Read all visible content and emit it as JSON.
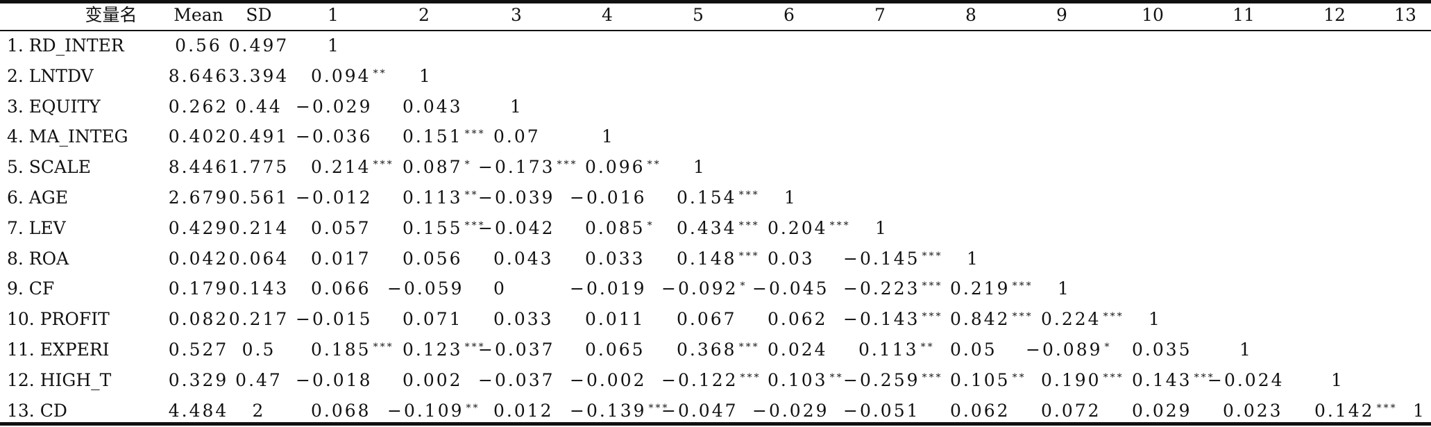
{
  "header": [
    "变量名",
    "Mean",
    "SD",
    "1",
    "2",
    "3",
    "4",
    "5",
    "6",
    "7",
    "8",
    "9",
    "10",
    "11",
    "12",
    "13"
  ],
  "rows": [
    {
      "name": "1. RD_INTER",
      "mean": "0.56",
      "sd": "0.497",
      "cells": [
        {
          "v": "1",
          "s": ""
        }
      ]
    },
    {
      "name": "2. LNTDV",
      "mean": "8.646",
      "sd": "3.394",
      "cells": [
        {
          "v": "0.094",
          "s": "**"
        },
        {
          "v": "1",
          "s": ""
        }
      ]
    },
    {
      "name": "3. EQUITY",
      "mean": "0.262",
      "sd": "0.44",
      "cells": [
        {
          "v": "−0.029",
          "s": ""
        },
        {
          "v": "0.043",
          "s": ""
        },
        {
          "v": "1",
          "s": ""
        }
      ]
    },
    {
      "name": "4. MA_INTEG",
      "mean": "0.402",
      "sd": "0.491",
      "cells": [
        {
          "v": "−0.036",
          "s": ""
        },
        {
          "v": "0.151",
          "s": "***"
        },
        {
          "v": "0.07",
          "s": ""
        },
        {
          "v": "1",
          "s": ""
        }
      ]
    },
    {
      "name": "5. SCALE",
      "mean": "8.446",
      "sd": "1.775",
      "cells": [
        {
          "v": "0.214",
          "s": "***"
        },
        {
          "v": "0.087",
          "s": "*"
        },
        {
          "v": "−0.173",
          "s": "***"
        },
        {
          "v": "0.096",
          "s": "**"
        },
        {
          "v": "1",
          "s": ""
        }
      ]
    },
    {
      "name": "6. AGE",
      "mean": "2.679",
      "sd": "0.561",
      "cells": [
        {
          "v": "−0.012",
          "s": ""
        },
        {
          "v": "0.113",
          "s": "**"
        },
        {
          "v": "−0.039",
          "s": ""
        },
        {
          "v": "−0.016",
          "s": ""
        },
        {
          "v": "0.154",
          "s": "***"
        },
        {
          "v": "1",
          "s": ""
        }
      ]
    },
    {
      "name": "7. LEV",
      "mean": "0.429",
      "sd": "0.214",
      "cells": [
        {
          "v": "0.057",
          "s": ""
        },
        {
          "v": "0.155",
          "s": "***"
        },
        {
          "v": "−0.042",
          "s": ""
        },
        {
          "v": "0.085",
          "s": "*"
        },
        {
          "v": "0.434",
          "s": "***"
        },
        {
          "v": "0.204",
          "s": "***"
        },
        {
          "v": "1",
          "s": ""
        }
      ]
    },
    {
      "name": "8. ROA",
      "mean": "0.042",
      "sd": "0.064",
      "cells": [
        {
          "v": "0.017",
          "s": ""
        },
        {
          "v": "0.056",
          "s": ""
        },
        {
          "v": "0.043",
          "s": ""
        },
        {
          "v": "0.033",
          "s": ""
        },
        {
          "v": "0.148",
          "s": "***"
        },
        {
          "v": "0.03",
          "s": ""
        },
        {
          "v": "−0.145",
          "s": "***"
        },
        {
          "v": "1",
          "s": ""
        }
      ]
    },
    {
      "name": "9. CF",
      "mean": "0.179",
      "sd": "0.143",
      "cells": [
        {
          "v": "0.066",
          "s": ""
        },
        {
          "v": "−0.059",
          "s": ""
        },
        {
          "v": "0",
          "s": ""
        },
        {
          "v": "−0.019",
          "s": ""
        },
        {
          "v": "−0.092",
          "s": "*"
        },
        {
          "v": "−0.045",
          "s": ""
        },
        {
          "v": "−0.223",
          "s": "***"
        },
        {
          "v": "0.219",
          "s": "***"
        },
        {
          "v": "1",
          "s": ""
        }
      ]
    },
    {
      "name": "10. PROFIT",
      "mean": "0.082",
      "sd": "0.217",
      "cells": [
        {
          "v": "−0.015",
          "s": ""
        },
        {
          "v": "0.071",
          "s": ""
        },
        {
          "v": "0.033",
          "s": ""
        },
        {
          "v": "0.011",
          "s": ""
        },
        {
          "v": "0.067",
          "s": ""
        },
        {
          "v": "0.062",
          "s": ""
        },
        {
          "v": "−0.143",
          "s": "***"
        },
        {
          "v": "0.842",
          "s": "***"
        },
        {
          "v": "0.224",
          "s": "***"
        },
        {
          "v": "1",
          "s": ""
        }
      ]
    },
    {
      "name": "11. EXPERI",
      "mean": "0.527",
      "sd": "0.5",
      "cells": [
        {
          "v": "0.185",
          "s": "***"
        },
        {
          "v": "0.123",
          "s": "***"
        },
        {
          "v": "−0.037",
          "s": ""
        },
        {
          "v": "0.065",
          "s": ""
        },
        {
          "v": "0.368",
          "s": "***"
        },
        {
          "v": "0.024",
          "s": ""
        },
        {
          "v": "0.113",
          "s": "**"
        },
        {
          "v": "0.05",
          "s": ""
        },
        {
          "v": "−0.089",
          "s": "*"
        },
        {
          "v": "0.035",
          "s": ""
        },
        {
          "v": "1",
          "s": ""
        }
      ]
    },
    {
      "name": "12. HIGH_T",
      "mean": "0.329",
      "sd": "0.47",
      "cells": [
        {
          "v": "−0.018",
          "s": ""
        },
        {
          "v": "0.002",
          "s": ""
        },
        {
          "v": "−0.037",
          "s": ""
        },
        {
          "v": "−0.002",
          "s": ""
        },
        {
          "v": "−0.122",
          "s": "***"
        },
        {
          "v": "0.103",
          "s": "**"
        },
        {
          "v": "−0.259",
          "s": "***"
        },
        {
          "v": "0.105",
          "s": "**"
        },
        {
          "v": "0.190",
          "s": "***"
        },
        {
          "v": "0.143",
          "s": "***"
        },
        {
          "v": "−0.024",
          "s": ""
        },
        {
          "v": "1",
          "s": ""
        }
      ]
    },
    {
      "name": "13. CD",
      "mean": "4.484",
      "sd": "2",
      "cells": [
        {
          "v": "0.068",
          "s": ""
        },
        {
          "v": "−0.109",
          "s": "**"
        },
        {
          "v": "0.012",
          "s": ""
        },
        {
          "v": "−0.139",
          "s": "***"
        },
        {
          "v": "−0.047",
          "s": ""
        },
        {
          "v": "−0.029",
          "s": ""
        },
        {
          "v": "−0.051",
          "s": ""
        },
        {
          "v": "0.062",
          "s": ""
        },
        {
          "v": "0.072",
          "s": ""
        },
        {
          "v": "0.029",
          "s": ""
        },
        {
          "v": "0.023",
          "s": ""
        },
        {
          "v": "0.142",
          "s": "***"
        },
        {
          "v": "1",
          "s": ""
        }
      ]
    }
  ]
}
